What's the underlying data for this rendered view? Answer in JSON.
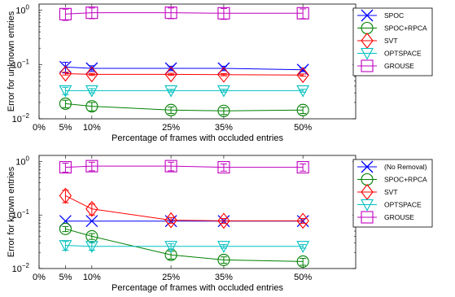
{
  "chart_data": [
    {
      "type": "line",
      "xlabel": "Percentage of frames with occluded entries",
      "ylabel": "Error for unknown entries",
      "xlim": [
        0,
        60
      ],
      "ylim_log10": [
        0.01,
        1.3
      ],
      "y_scale": "log",
      "x_ticks": [
        0,
        5,
        10,
        25,
        35,
        50
      ],
      "x_tick_labels": [
        "0%",
        "5%",
        "10%",
        "25%",
        "35%",
        "50%"
      ],
      "y_ticks": [
        0.01,
        0.1,
        1
      ],
      "y_tick_labels": [
        {
          "base": "10",
          "exp": "−2"
        },
        {
          "base": "10",
          "exp": "−1"
        },
        {
          "base": "10",
          "exp": "0"
        }
      ],
      "legend_position": "right",
      "x": [
        5,
        10,
        25,
        35,
        50
      ],
      "series": [
        {
          "name": "SPOC",
          "color": "#0000ff",
          "marker": "x",
          "values": [
            0.09,
            0.085,
            0.085,
            0.085,
            0.08
          ],
          "errors": [
            0.02,
            0.01,
            0.008,
            0.008,
            0.006
          ]
        },
        {
          "name": "SPOC+RPCA",
          "color": "#008000",
          "marker": "circle",
          "values": [
            0.019,
            0.017,
            0.0145,
            0.014,
            0.0145
          ],
          "errors": [
            0.003,
            0.003,
            0.002,
            0.002,
            0.002
          ]
        },
        {
          "name": "SVT",
          "color": "#ff0000",
          "marker": "diamond",
          "values": [
            0.068,
            0.066,
            0.066,
            0.065,
            0.064
          ],
          "errors": [
            0.004,
            0.003,
            0.003,
            0.003,
            0.003
          ]
        },
        {
          "name": "OPTSPACE",
          "color": "#00bfbf",
          "marker": "triangle-down",
          "values": [
            0.033,
            0.033,
            0.033,
            0.033,
            0.033
          ],
          "errors": [
            0.005,
            0.003,
            0.002,
            0.002,
            0.002
          ]
        },
        {
          "name": "GROUSE",
          "color": "#bf00bf",
          "marker": "square",
          "values": [
            0.85,
            0.9,
            0.9,
            0.88,
            0.88
          ],
          "errors": [
            0.2,
            0.2,
            0.2,
            0.2,
            0.18
          ]
        }
      ]
    },
    {
      "type": "line",
      "xlabel": "Percentage of frames with occluded entries",
      "ylabel": "Error for known entries",
      "xlim": [
        0,
        60
      ],
      "ylim_log10": [
        0.01,
        1.3
      ],
      "y_scale": "log",
      "x_ticks": [
        0,
        5,
        10,
        25,
        35,
        50
      ],
      "x_tick_labels": [
        "0%",
        "5%",
        "10%",
        "25%",
        "35%",
        "50%"
      ],
      "y_ticks": [
        0.01,
        0.1,
        1
      ],
      "y_tick_labels": [
        {
          "base": "10",
          "exp": "−2"
        },
        {
          "base": "10",
          "exp": "−1"
        },
        {
          "base": "10",
          "exp": "0"
        }
      ],
      "legend_position": "right",
      "x": [
        5,
        10,
        25,
        35,
        50
      ],
      "series": [
        {
          "name": "(No Removal)",
          "color": "#0000ff",
          "marker": "x",
          "values": [
            0.077,
            0.077,
            0.077,
            0.077,
            0.077
          ],
          "errors": [
            0,
            0,
            0,
            0,
            0
          ]
        },
        {
          "name": "SPOC+RPCA",
          "color": "#008000",
          "marker": "circle",
          "values": [
            0.055,
            0.04,
            0.018,
            0.0145,
            0.0135
          ],
          "errors": [
            0.006,
            0.005,
            0.003,
            0.002,
            0.002
          ]
        },
        {
          "name": "SVT",
          "color": "#ff0000",
          "marker": "diamond",
          "values": [
            0.23,
            0.13,
            0.08,
            0.078,
            0.078
          ],
          "errors": [
            0.06,
            0.03,
            0.01,
            0.008,
            0.008
          ]
        },
        {
          "name": "OPTSPACE",
          "color": "#00bfbf",
          "marker": "triangle-down",
          "values": [
            0.027,
            0.026,
            0.026,
            0.026,
            0.026
          ],
          "errors": [
            0.005,
            0.004,
            0.003,
            0.002,
            0.002
          ]
        },
        {
          "name": "GROUSE",
          "color": "#bf00bf",
          "marker": "square",
          "values": [
            0.78,
            0.82,
            0.82,
            0.78,
            0.78
          ],
          "errors": [
            0.15,
            0.15,
            0.15,
            0.12,
            0.12
          ]
        }
      ]
    }
  ]
}
